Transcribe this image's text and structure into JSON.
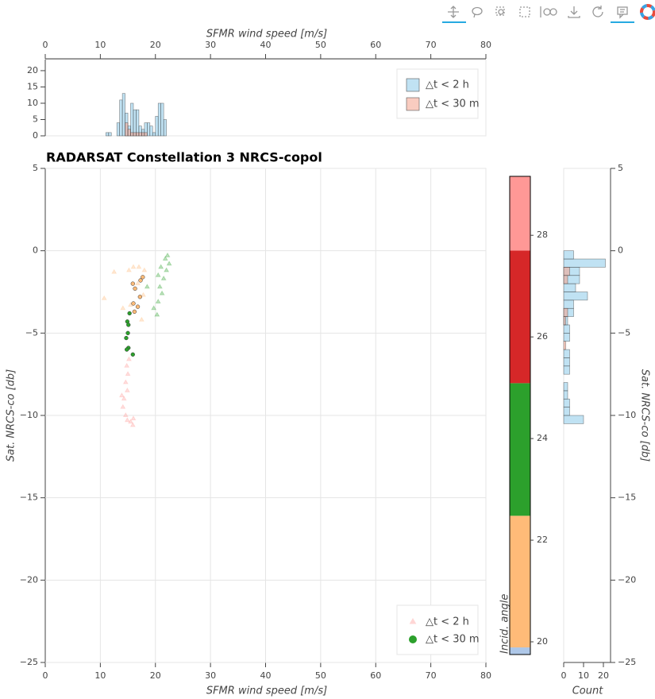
{
  "chart_data": [
    {
      "type": "histogram",
      "xlabel": "SFMR wind speed [m/s]",
      "xlim": [
        0,
        80
      ],
      "xticks": [
        0,
        10,
        20,
        30,
        40,
        50,
        60,
        70,
        80
      ],
      "ylim": [
        0,
        23.4
      ],
      "yticks": [
        0,
        5,
        10,
        15,
        20
      ],
      "legend": "top_right",
      "bins": [
        11,
        11.5,
        12,
        12.5,
        13,
        13.5,
        14,
        14.5,
        15,
        15.5,
        16,
        16.5,
        17,
        17.5,
        18,
        18.5,
        19,
        19.5,
        20,
        20.5,
        21,
        21.5,
        22,
        22.5,
        23
      ],
      "series": [
        {
          "name": "△t < 2 h",
          "color": "#8ccbe9",
          "values": [
            1,
            1,
            0,
            0,
            4,
            11,
            13,
            7,
            3,
            10,
            8,
            8,
            3,
            2,
            4,
            4,
            3,
            1,
            6,
            10,
            10,
            5,
            0,
            0
          ]
        },
        {
          "name": "△t < 30 m",
          "color": "#f4a28c",
          "values": [
            0,
            0,
            0,
            0,
            0,
            0,
            0,
            4,
            2,
            1,
            1,
            1,
            1,
            1,
            1,
            0,
            0,
            0,
            0,
            0,
            0,
            0,
            0,
            0
          ]
        }
      ]
    },
    {
      "type": "scatter",
      "title": "RADARSAT Constellation 3 NRCS-copol",
      "xlabel": "SFMR wind speed [m/s]",
      "ylabel": "Sat. NRCS-co [db]",
      "xlim": [
        0,
        80
      ],
      "xticks": [
        0,
        10,
        20,
        30,
        40,
        50,
        60,
        70,
        80
      ],
      "ylim": [
        -25,
        5
      ],
      "yticks": [
        5,
        0,
        {
          "value": -5,
          "label": "−5"
        },
        {
          "value": -10,
          "label": "−10"
        },
        {
          "value": -15,
          "label": "−15"
        },
        {
          "value": -20,
          "label": "−20"
        },
        {
          "value": -25,
          "label": "−25"
        }
      ],
      "grid": true,
      "legend": "bottom_right",
      "series": [
        {
          "name": "△t < 2 h",
          "marker": "triangle",
          "color": "#ff9896",
          "x": [
            22.2,
            21.8,
            22.5,
            21,
            22,
            20.5,
            21.5,
            20.8,
            21.2,
            20.5,
            19.7,
            20.3,
            18.5,
            16,
            17,
            18,
            15.2,
            16.8,
            17.8,
            15.5,
            14.1,
            17.5,
            12.5,
            10.7,
            15.2,
            14.8,
            15,
            14.6,
            14.9,
            14.3,
            14.1,
            14.6,
            14.9,
            15.5,
            15.9,
            16,
            13.9
          ],
          "y": [
            -0.3,
            -0.5,
            -0.8,
            -1,
            -1.2,
            -1.5,
            -1.7,
            -2.2,
            -2.6,
            -3.1,
            -3.5,
            -3.9,
            -2.2,
            -1,
            -1,
            -1.2,
            -1.2,
            -2,
            -2.7,
            -3.3,
            -3.5,
            -4.2,
            -1.3,
            -2.9,
            -6.6,
            -7,
            -7.5,
            -8,
            -8.5,
            -9,
            -9.5,
            -10,
            -10.3,
            -10.4,
            -10.6,
            -10.2,
            -8.8
          ],
          "c": [
            23.5,
            23.5,
            23.5,
            23.5,
            23.5,
            23.5,
            23.5,
            23.5,
            23.5,
            23.5,
            23.5,
            23.5,
            23.5,
            21,
            21,
            21,
            21,
            21,
            21,
            21,
            21,
            21,
            21,
            21,
            28,
            28,
            28,
            28,
            28,
            28,
            28,
            28,
            28,
            28,
            28,
            28,
            28
          ]
        },
        {
          "name": "△t < 30 m",
          "marker": "circle",
          "color": "#2ca02c",
          "x": [
            15.9,
            16.3,
            17.3,
            17.7,
            17.2,
            16,
            16.8,
            16.2,
            15.3,
            14.9,
            15.1,
            15,
            14.7,
            15.1,
            14.8,
            15.9
          ],
          "y": [
            -2,
            -2.3,
            -1.8,
            -1.6,
            -2.8,
            -3.2,
            -3.4,
            -3.7,
            -3.8,
            -4.3,
            -4.5,
            -5,
            -5.3,
            -5.9,
            -6,
            -6.3
          ],
          "c": [
            21.5,
            21.5,
            21.5,
            21.5,
            21.5,
            21.5,
            21.5,
            21.5,
            24,
            24,
            24,
            24,
            24,
            24,
            24,
            24
          ]
        }
      ],
      "colorbar": {
        "label": "Incid. angle",
        "lim": [
          19.75,
          29.16
        ],
        "ticks": [
          20,
          22,
          24,
          26,
          28
        ],
        "bands": [
          {
            "from": 19.75,
            "to": 19.89,
            "color": "#aec7e8"
          },
          {
            "from": 19.89,
            "to": 22.48,
            "color": "#ffbb78"
          },
          {
            "from": 22.48,
            "to": 25.09,
            "color": "#2ca02c"
          },
          {
            "from": 25.09,
            "to": 27.7,
            "color": "#d62728"
          },
          {
            "from": 27.7,
            "to": 29.16,
            "color": "#ff9896"
          }
        ]
      }
    },
    {
      "type": "histogram",
      "orientation": "horizontal",
      "xlabel": "Count",
      "ylabel": "Sat. NRCS-co [db]",
      "xlim": [
        0,
        23.6
      ],
      "xticks": [
        0,
        10,
        20
      ],
      "ylim": [
        -25,
        5
      ],
      "yticks": [
        5,
        0,
        {
          "value": -5,
          "label": "−5"
        },
        {
          "value": -10,
          "label": "−10"
        },
        {
          "value": -15,
          "label": "−15"
        },
        {
          "value": -20,
          "label": "−20"
        },
        {
          "value": -25,
          "label": "−25"
        }
      ],
      "bins": [
        -10.5,
        -10,
        -9.5,
        -9,
        -8.5,
        -8,
        -7.5,
        -7,
        -6.5,
        -6,
        -5.5,
        -5,
        -4.5,
        -4,
        -3.5,
        -3,
        -2.5,
        -2,
        -1.5,
        -1,
        -0.5,
        0
      ],
      "series": [
        {
          "name": "△t < 2 h",
          "color": "#8ccbe9",
          "values": [
            10,
            3,
            3,
            2,
            2,
            0,
            3,
            3,
            3,
            0,
            3,
            3,
            2,
            5,
            5,
            12,
            6,
            8,
            8,
            21,
            5
          ]
        },
        {
          "name": "△t < 30 m",
          "color": "#f4a28c",
          "values": [
            0,
            0,
            0,
            0,
            0,
            0,
            0,
            0,
            0,
            1,
            0,
            0,
            1,
            2,
            0,
            0,
            0,
            2,
            3,
            0,
            0
          ]
        }
      ]
    }
  ]
}
